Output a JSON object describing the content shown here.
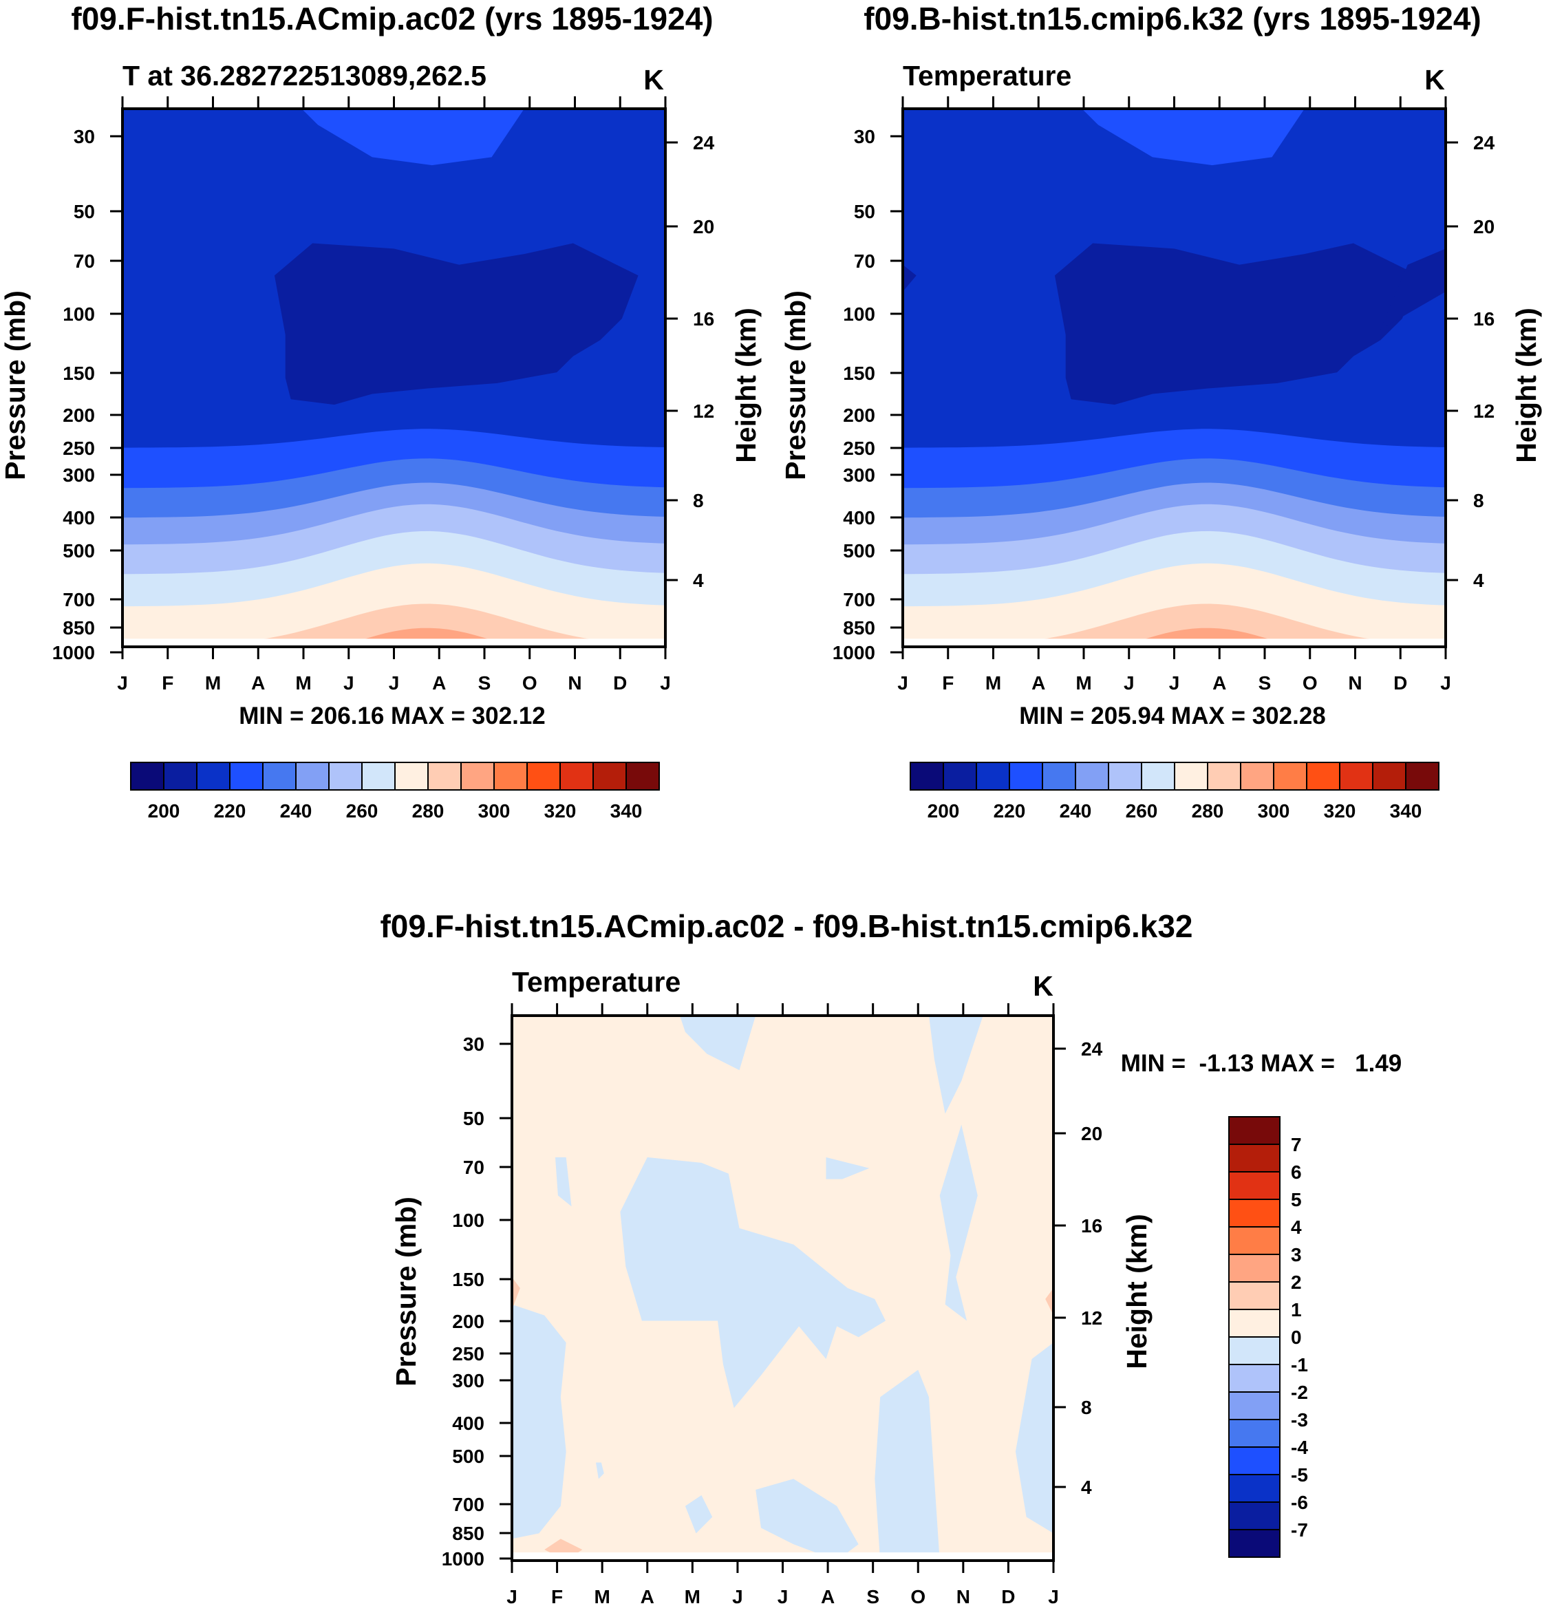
{
  "palette": {
    "cold": [
      "#0a0a78",
      "#0a1ea0",
      "#0a32c8",
      "#1e50ff",
      "#4678f0",
      "#82a0f5",
      "#afc3fa",
      "#d2e6fa",
      "#fff0e1",
      "#ffcdb4",
      "#ffa582",
      "#ff7d46",
      "#ff5014",
      "#e13214",
      "#b41e0a",
      "#780a0a"
    ],
    "neutral_gray": "#bfbfbf"
  },
  "panels": [
    {
      "id": "panel-1",
      "title": "f09.F-hist.tn15.ACmip.ac02 (yrs 1895-1924)",
      "left_label": "T at 36.282722513089,262.5",
      "unit": "K",
      "ylabel": "Pressure (mb)",
      "y2label": "Height (km)",
      "minmax": "MIN = 206.16 MAX = 302.12",
      "variant": "a"
    },
    {
      "id": "panel-2",
      "title": "f09.B-hist.tn15.cmip6.k32 (yrs 1895-1924)",
      "left_label": "Temperature",
      "unit": "K",
      "ylabel": "Pressure (mb)",
      "y2label": "Height (km)",
      "minmax": "MIN = 205.94 MAX = 302.28",
      "variant": "b"
    },
    {
      "id": "panel-3",
      "title": "f09.F-hist.tn15.ACmip.ac02 - f09.B-hist.tn15.cmip6.k32",
      "left_label": "Temperature",
      "unit": "K",
      "ylabel": "Pressure (mb)",
      "y2label": "Height (km)",
      "minmax": "MIN =  -1.13 MAX =   1.49"
    }
  ],
  "chart_data": [
    {
      "type": "heatmap",
      "subtype": "filled-contour",
      "title": "f09.F-hist.tn15.ACmip.ac02 (yrs 1895-1924)",
      "xlabel": "",
      "ylabel": "Pressure (mb)",
      "y2label": "Height (km)",
      "x_ticks": [
        "J",
        "F",
        "M",
        "A",
        "M",
        "J",
        "J",
        "A",
        "S",
        "O",
        "N",
        "D",
        "J"
      ],
      "y_ticks": [
        30,
        50,
        70,
        100,
        150,
        200,
        250,
        300,
        400,
        500,
        700,
        850,
        1000
      ],
      "y2_ticks": [
        24,
        20,
        16,
        12,
        8,
        4
      ],
      "units": "K",
      "min": 206.16,
      "max": 302.12,
      "levels_approx": [
        210,
        220,
        230,
        240,
        250,
        260,
        270,
        280,
        290,
        300
      ],
      "colorbar_ticks": [
        200,
        220,
        240,
        260,
        280,
        300,
        320,
        340
      ]
    },
    {
      "type": "heatmap",
      "subtype": "filled-contour",
      "title": "f09.B-hist.tn15.cmip6.k32 (yrs 1895-1924)",
      "xlabel": "",
      "ylabel": "Pressure (mb)",
      "y2label": "Height (km)",
      "x_ticks": [
        "J",
        "F",
        "M",
        "A",
        "M",
        "J",
        "J",
        "A",
        "S",
        "O",
        "N",
        "D",
        "J"
      ],
      "y_ticks": [
        30,
        50,
        70,
        100,
        150,
        200,
        250,
        300,
        400,
        500,
        700,
        850,
        1000
      ],
      "y2_ticks": [
        24,
        20,
        16,
        12,
        8,
        4
      ],
      "units": "K",
      "min": 205.94,
      "max": 302.28,
      "levels_approx": [
        210,
        220,
        230,
        240,
        250,
        260,
        270,
        280,
        290,
        300
      ],
      "colorbar_ticks": [
        200,
        220,
        240,
        260,
        280,
        300,
        320,
        340
      ]
    },
    {
      "type": "heatmap",
      "subtype": "filled-contour-difference",
      "title": "f09.F-hist.tn15.ACmip.ac02 - f09.B-hist.tn15.cmip6.k32",
      "xlabel": "",
      "ylabel": "Pressure (mb)",
      "y2label": "Height (km)",
      "x_ticks": [
        "J",
        "F",
        "M",
        "A",
        "M",
        "J",
        "J",
        "A",
        "S",
        "O",
        "N",
        "D",
        "J"
      ],
      "y_ticks": [
        30,
        50,
        70,
        100,
        150,
        200,
        250,
        300,
        400,
        500,
        700,
        850,
        1000
      ],
      "y2_ticks": [
        24,
        20,
        16,
        12,
        8,
        4
      ],
      "units": "K",
      "min": -1.13,
      "max": 1.49,
      "colorbar_ticks": [
        7,
        6,
        5,
        4,
        3,
        2,
        1,
        0,
        -1,
        -2,
        -3,
        -4,
        -5,
        -6,
        -7
      ]
    }
  ]
}
